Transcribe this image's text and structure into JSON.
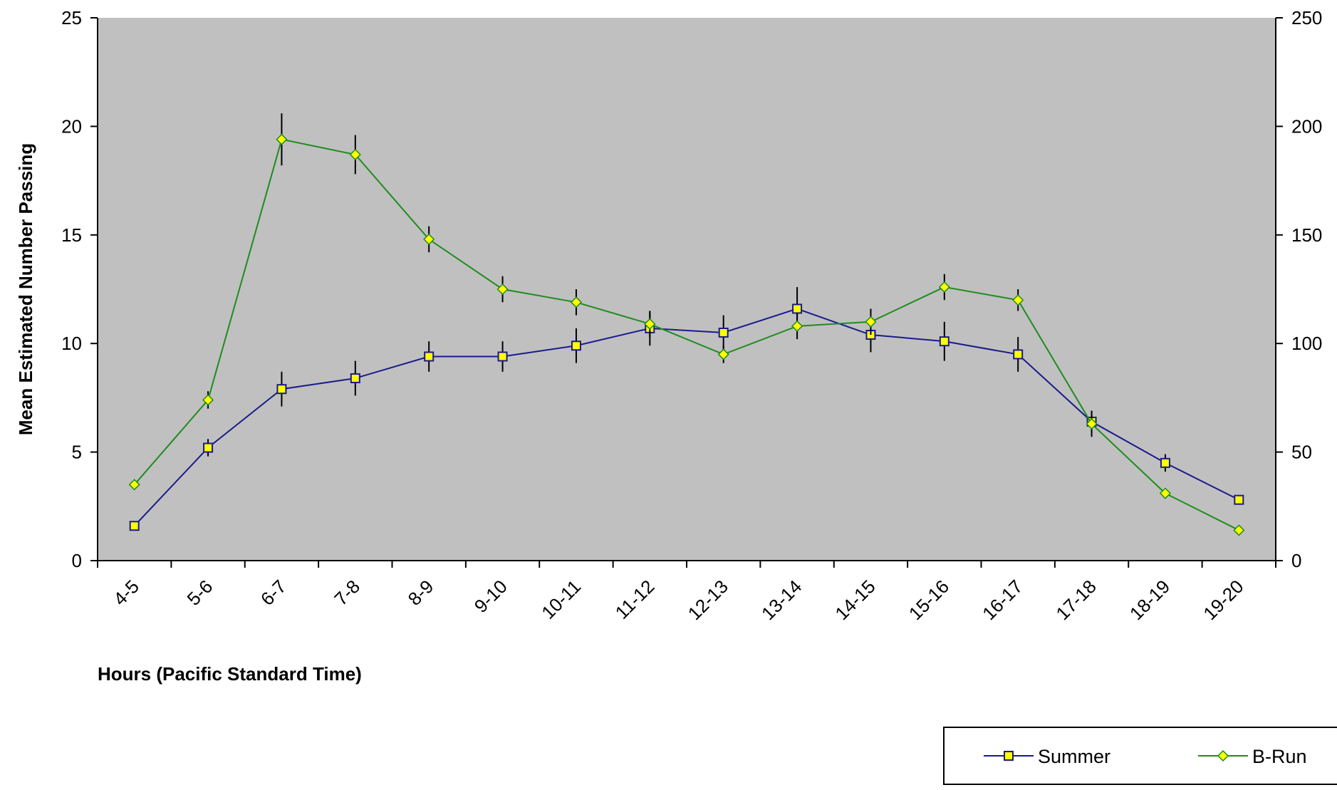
{
  "chart_data": {
    "type": "line",
    "title": "",
    "xlabel": "Hours (Pacific Standard Time)",
    "ylabel": "Mean Estimated Number Passing",
    "y2label": "",
    "categories": [
      "4-5",
      "5-6",
      "6-7",
      "7-8",
      "8-9",
      "9-10",
      "10-11",
      "11-12",
      "12-13",
      "13-14",
      "14-15",
      "15-16",
      "16-17",
      "17-18",
      "18-19",
      "19-20"
    ],
    "ylim": [
      0,
      25
    ],
    "y2lim": [
      0,
      250
    ],
    "yticks": [
      "0",
      "5",
      "10",
      "15",
      "20",
      "25"
    ],
    "y2ticks": [
      "0",
      "50",
      "100",
      "150",
      "200",
      "250"
    ],
    "grid": false,
    "plot_background": "#c0c0c0",
    "legend_position": "bottom-right",
    "series": [
      {
        "name": "Summer",
        "axis": "left",
        "color": "#1a1a8c",
        "marker": "square",
        "marker_fill": "#ffff00",
        "values": [
          1.6,
          5.2,
          7.9,
          8.4,
          9.4,
          9.4,
          9.9,
          10.7,
          10.5,
          11.6,
          10.4,
          10.1,
          9.5,
          6.4,
          4.5,
          2.8
        ],
        "errors": [
          0,
          0.4,
          0.8,
          0.8,
          0.7,
          0.7,
          0.8,
          0.8,
          0.8,
          1.0,
          0.8,
          0.9,
          0.8,
          0.5,
          0.4,
          0
        ]
      },
      {
        "name": "B-Run",
        "axis": "left",
        "color": "#1e8c1e",
        "marker": "diamond",
        "marker_fill": "#ffff00",
        "values": [
          3.5,
          7.4,
          19.4,
          18.7,
          14.8,
          12.5,
          11.9,
          10.9,
          9.5,
          10.8,
          11.0,
          12.6,
          12.0,
          6.3,
          3.1,
          1.4
        ],
        "errors": [
          0,
          0.4,
          1.2,
          0.9,
          0.6,
          0.6,
          0.6,
          0.6,
          0.4,
          0.6,
          0.6,
          0.6,
          0.5,
          0.6,
          0,
          0
        ]
      }
    ]
  }
}
